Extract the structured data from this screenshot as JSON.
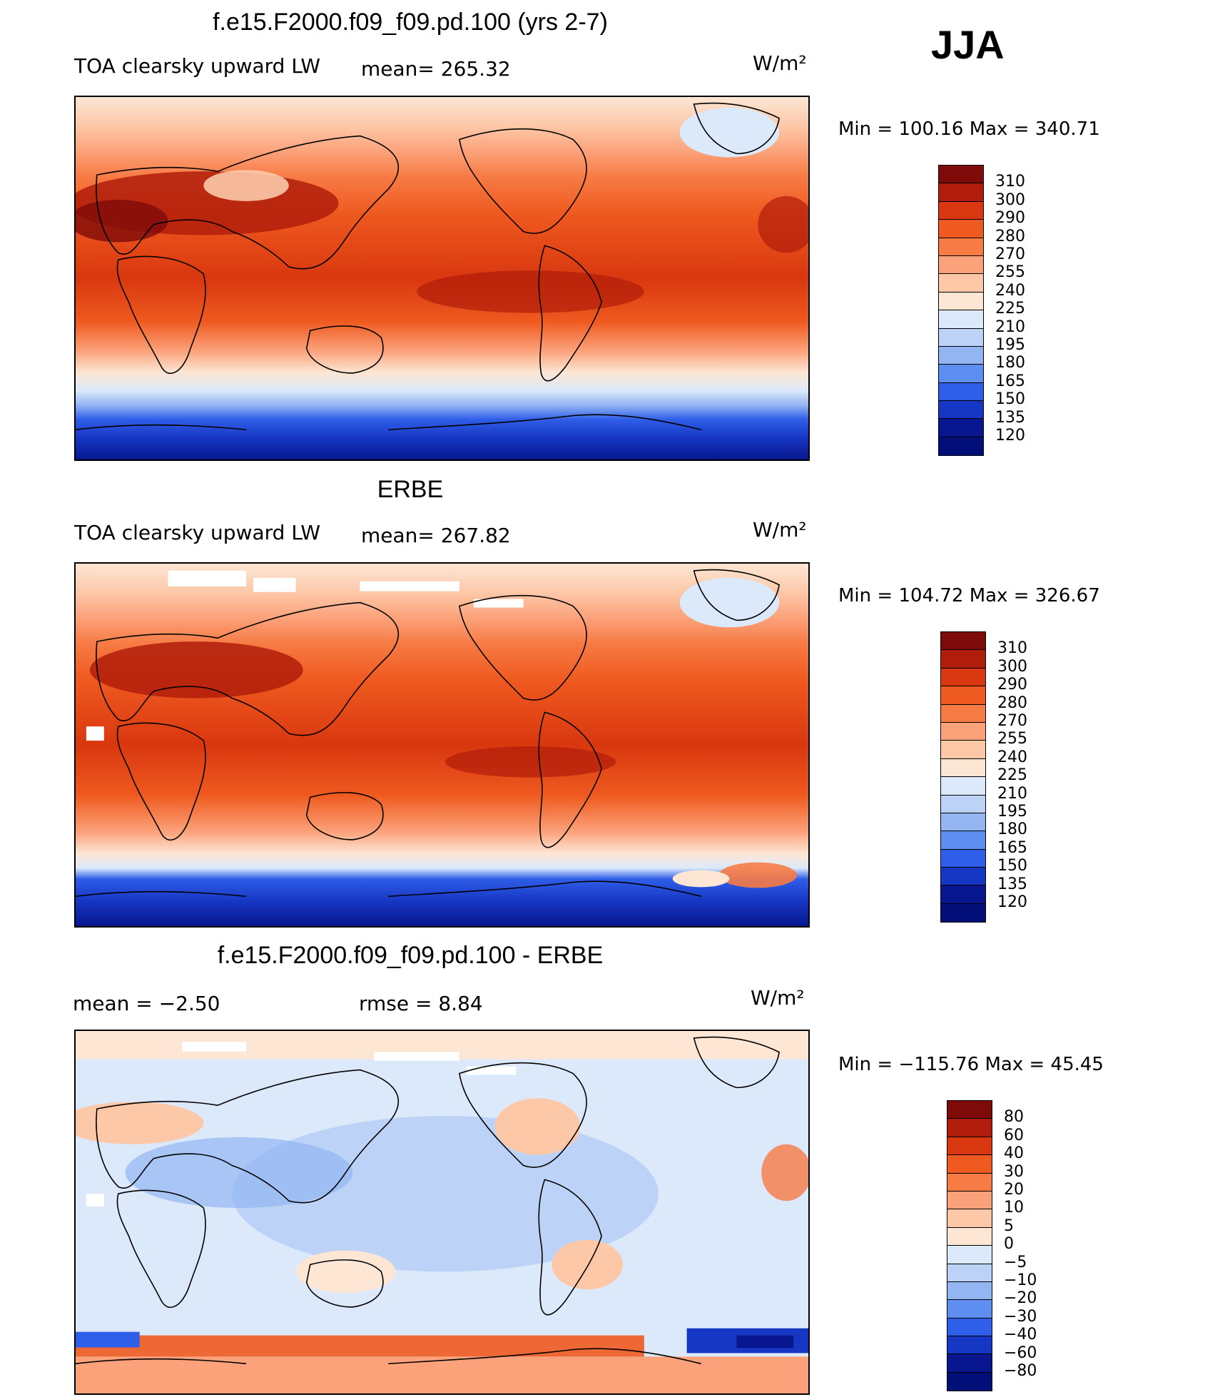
{
  "season": "JJA",
  "units": "W/m²",
  "panels": [
    {
      "title": "f.e15.F2000.f09_f09.pd.100 (yrs 2-7)",
      "left_label": "TOA clearsky upward LW",
      "stat_text": "mean= 265.32",
      "units": "W/m²",
      "min_max": "Min  =  100.16  Max  =  340.71",
      "colorbar_levels": [
        "310",
        "300",
        "290",
        "280",
        "270",
        "255",
        "240",
        "225",
        "210",
        "195",
        "180",
        "165",
        "150",
        "135",
        "120"
      ]
    },
    {
      "title": "ERBE",
      "left_label": "TOA clearsky upward LW",
      "stat_text": "mean= 267.82",
      "units": "W/m²",
      "min_max": "Min  =  104.72  Max  =  326.67",
      "colorbar_levels": [
        "310",
        "300",
        "290",
        "280",
        "270",
        "255",
        "240",
        "225",
        "210",
        "195",
        "180",
        "165",
        "150",
        "135",
        "120"
      ]
    },
    {
      "title": "f.e15.F2000.f09_f09.pd.100 - ERBE",
      "left_label": "mean  =    −2.50",
      "stat_text": "rmse  =     8.84",
      "units": "W/m²",
      "min_max": "Min  =  −115.76  Max  =    45.45",
      "colorbar_levels": [
        "80",
        "60",
        "40",
        "30",
        "20",
        "10",
        "5",
        "0",
        "−5",
        "−10",
        "−20",
        "−30",
        "−40",
        "−60",
        "−80"
      ]
    }
  ],
  "colors": {
    "abs_scale": [
      "#7f0a0a",
      "#b01d0a",
      "#d9370f",
      "#ef5a20",
      "#f77b45",
      "#fba27a",
      "#fcc8a8",
      "#fde6d4",
      "#dbe9fa",
      "#bcd3f7",
      "#93b5f2",
      "#5e8ef0",
      "#2f5ee8",
      "#1637c4",
      "#08178f",
      "#020f78"
    ],
    "diff_scale": [
      "#7f0a0a",
      "#b01d0a",
      "#d9370f",
      "#ef5a20",
      "#f77b45",
      "#fba27a",
      "#fcc8a8",
      "#fde6d4",
      "#dbe9fa",
      "#bcd3f7",
      "#93b5f2",
      "#5e8ef0",
      "#2f5ee8",
      "#1637c4",
      "#08178f",
      "#020f78"
    ]
  }
}
